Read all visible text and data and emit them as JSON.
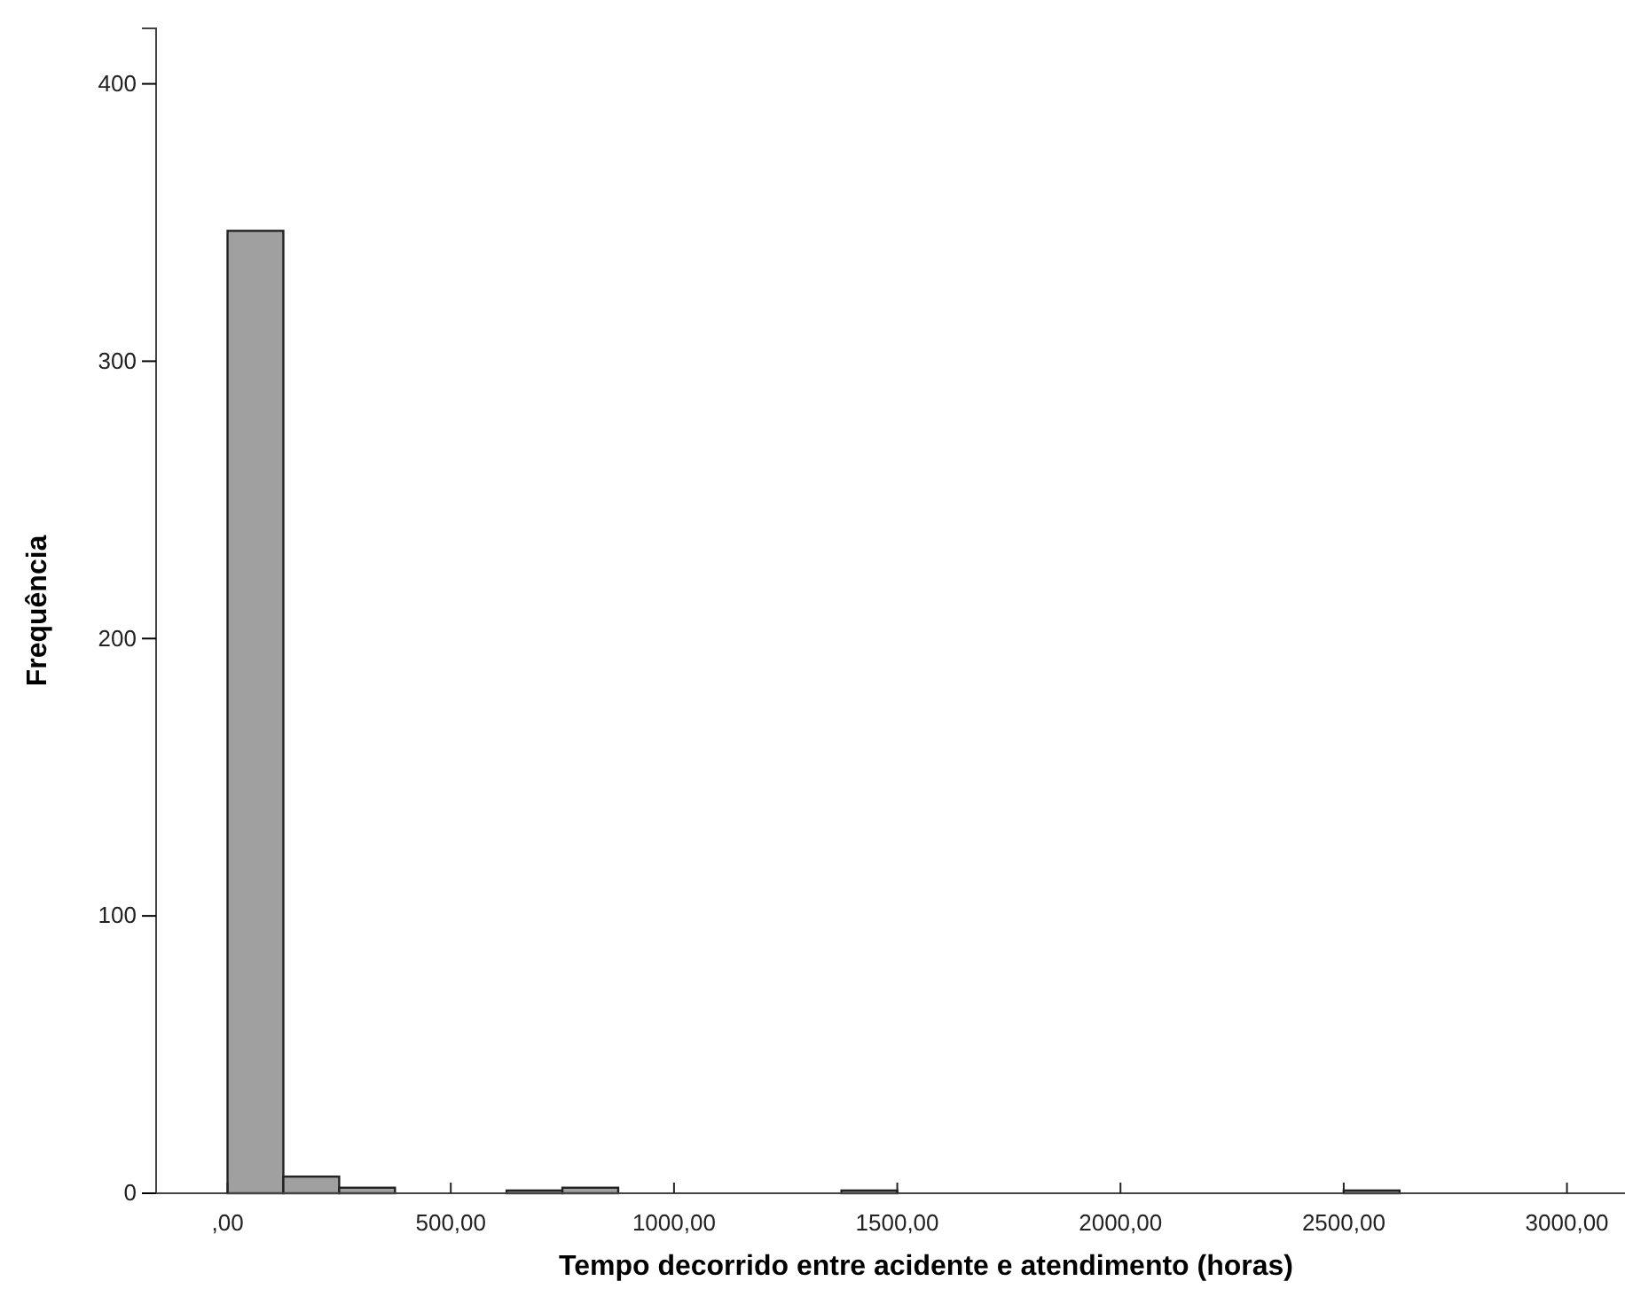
{
  "chart_data": {
    "type": "histogram",
    "xlabel": "Tempo decorrido entre acidente e atendimento (horas)",
    "ylabel": "Frequência",
    "bins": [
      0,
      125,
      250,
      375,
      500,
      625,
      750,
      875,
      1000,
      1125,
      1250,
      1375,
      1500,
      1625,
      1750,
      1875,
      2000,
      2125,
      2250,
      2375,
      2500,
      2625
    ],
    "values": [
      347,
      6,
      2,
      0,
      0,
      1,
      2,
      0,
      0,
      0,
      0,
      1,
      0,
      0,
      0,
      0,
      0,
      0,
      0,
      0,
      1
    ],
    "color": "#a0a0a0",
    "xlim": [
      -160,
      3130
    ],
    "ylim": [
      0,
      420
    ],
    "xticks": [
      {
        "value": 0,
        "label": ",00"
      },
      {
        "value": 500,
        "label": "500,00"
      },
      {
        "value": 1000,
        "label": "1000,00"
      },
      {
        "value": 1500,
        "label": "1500,00"
      },
      {
        "value": 2000,
        "label": "2000,00"
      },
      {
        "value": 2500,
        "label": "2500,00"
      },
      {
        "value": 3000,
        "label": "3000,00"
      }
    ],
    "yticks": [
      0,
      100,
      200,
      300,
      400
    ],
    "grid": false
  }
}
